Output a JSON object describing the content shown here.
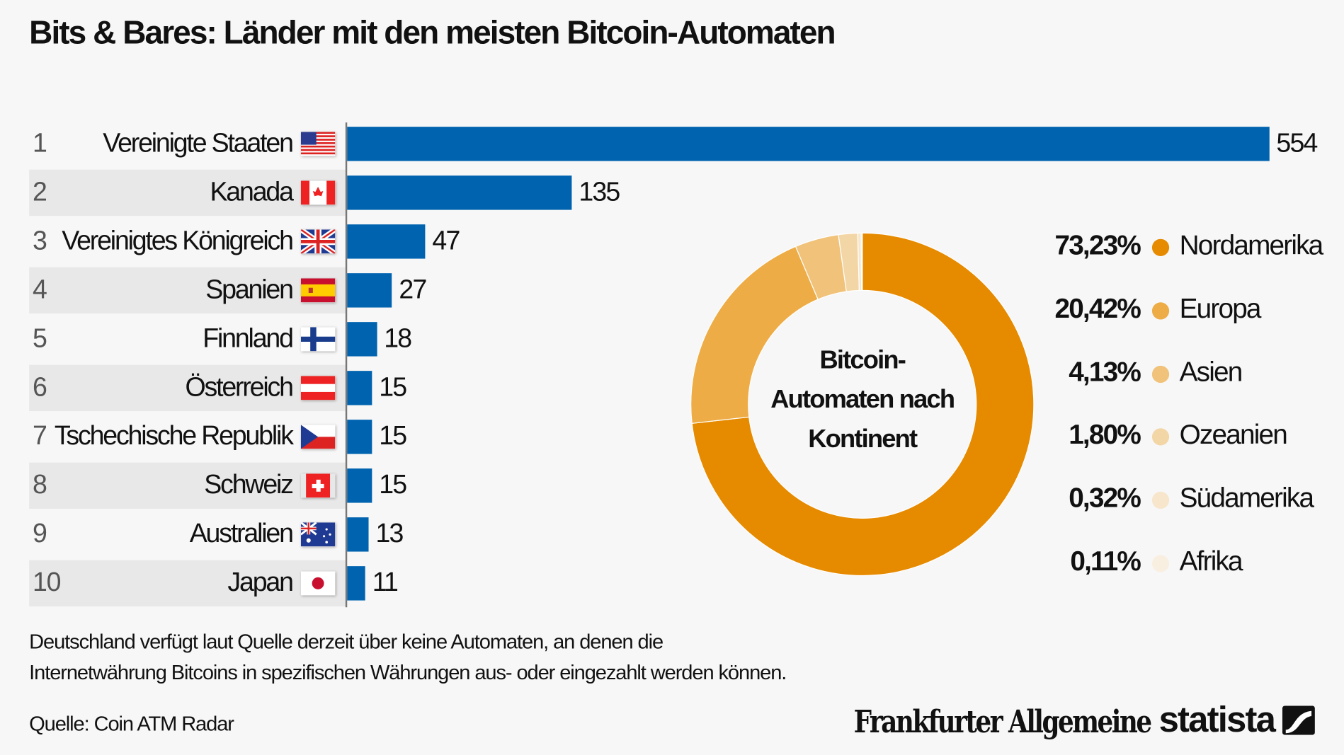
{
  "title": "Bits & Bares: Länder mit den meisten Bitcoin-Automaten",
  "chart_data": [
    {
      "type": "bar",
      "orientation": "horizontal",
      "bar_color": "#0063af",
      "categories": [
        "Vereinigte Staaten",
        "Kanada",
        "Vereinigtes Königreich",
        "Spanien",
        "Finnland",
        "Österreich",
        "Tschechische Republik",
        "Schweiz",
        "Australien",
        "Japan"
      ],
      "ranks": [
        "1",
        "2",
        "3",
        "4",
        "5",
        "6",
        "7",
        "8",
        "9",
        "10"
      ],
      "flag_icons": [
        "us-flag-icon",
        "ca-flag-icon",
        "gb-flag-icon",
        "es-flag-icon",
        "fi-flag-icon",
        "at-flag-icon",
        "cz-flag-icon",
        "ch-flag-icon",
        "au-flag-icon",
        "jp-flag-icon"
      ],
      "values": [
        554,
        135,
        47,
        27,
        18,
        15,
        15,
        15,
        13,
        11
      ],
      "xlim": [
        0,
        554
      ],
      "grid": false
    },
    {
      "type": "pie",
      "donut": true,
      "center_label": [
        "Bitcoin-",
        "Automaten nach",
        "Kontinent"
      ],
      "legend_placement": "right",
      "slices": [
        {
          "label": "Nordamerika",
          "value": 73.23,
          "display": "73,23%",
          "color": "#e68a00"
        },
        {
          "label": "Europa",
          "value": 20.42,
          "display": "20,42%",
          "color": "#edac45"
        },
        {
          "label": "Asien",
          "value": 4.13,
          "display": "4,13%",
          "color": "#f0c27a"
        },
        {
          "label": "Ozeanien",
          "value": 1.8,
          "display": "1,80%",
          "color": "#f3d6a6"
        },
        {
          "label": "Südamerika",
          "value": 0.32,
          "display": "0,32%",
          "color": "#f7e6cb"
        },
        {
          "label": "Afrika",
          "value": 0.11,
          "display": "0,11%",
          "color": "#f9efe1"
        }
      ]
    }
  ],
  "footnote": [
    "Deutschland verfügt laut Quelle derzeit über keine Automaten, an denen die",
    "Internetwährung Bitcoins in spezifischen Währungen aus- oder eingezahlt werden können."
  ],
  "source": "Quelle: Coin ATM Radar",
  "logos": {
    "faz": "Frankfurter Allgemeine",
    "statista": "statista"
  }
}
